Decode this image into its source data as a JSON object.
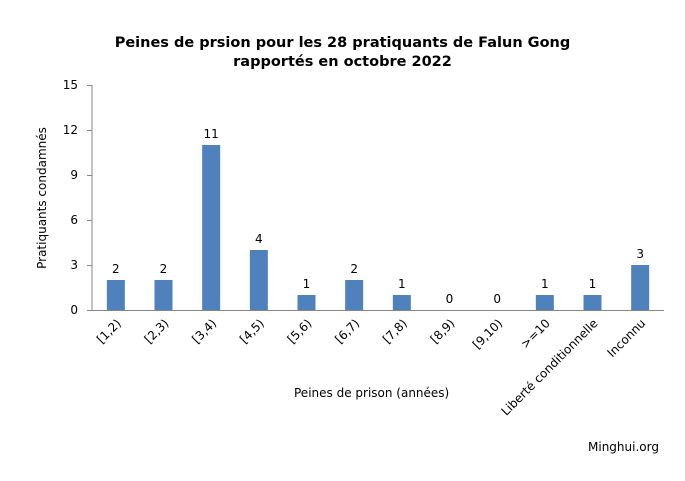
{
  "chart_data": {
    "type": "bar",
    "title": "Peines de prsion pour les 28 pratiquants de Falun Gong rapportés en octobre 2022",
    "title_lines": [
      "Peines de prsion pour les 28 pratiquants de Falun Gong",
      "rapportés en octobre 2022"
    ],
    "xlabel": "Peines de prison  (années)",
    "ylabel": "Pratiquants  condamnés",
    "categories": [
      "[1,2)",
      "[2,3)",
      "[3,4)",
      "[4,5)",
      "[5,6)",
      "[6,7)",
      "[7,8)",
      "[8,9)",
      "[9,10)",
      ">=10",
      "Liberté conditionnelle",
      "Inconnu"
    ],
    "values": [
      2,
      2,
      11,
      4,
      1,
      2,
      1,
      0,
      0,
      1,
      1,
      3
    ],
    "ylim": [
      0,
      15
    ],
    "yticks": [
      0,
      3,
      6,
      9,
      12,
      15
    ],
    "grid": false,
    "legend": "none",
    "data_labels": true,
    "bar_color": "#4f81bd",
    "axis_color": "#868686"
  },
  "source": "Minghui.org"
}
